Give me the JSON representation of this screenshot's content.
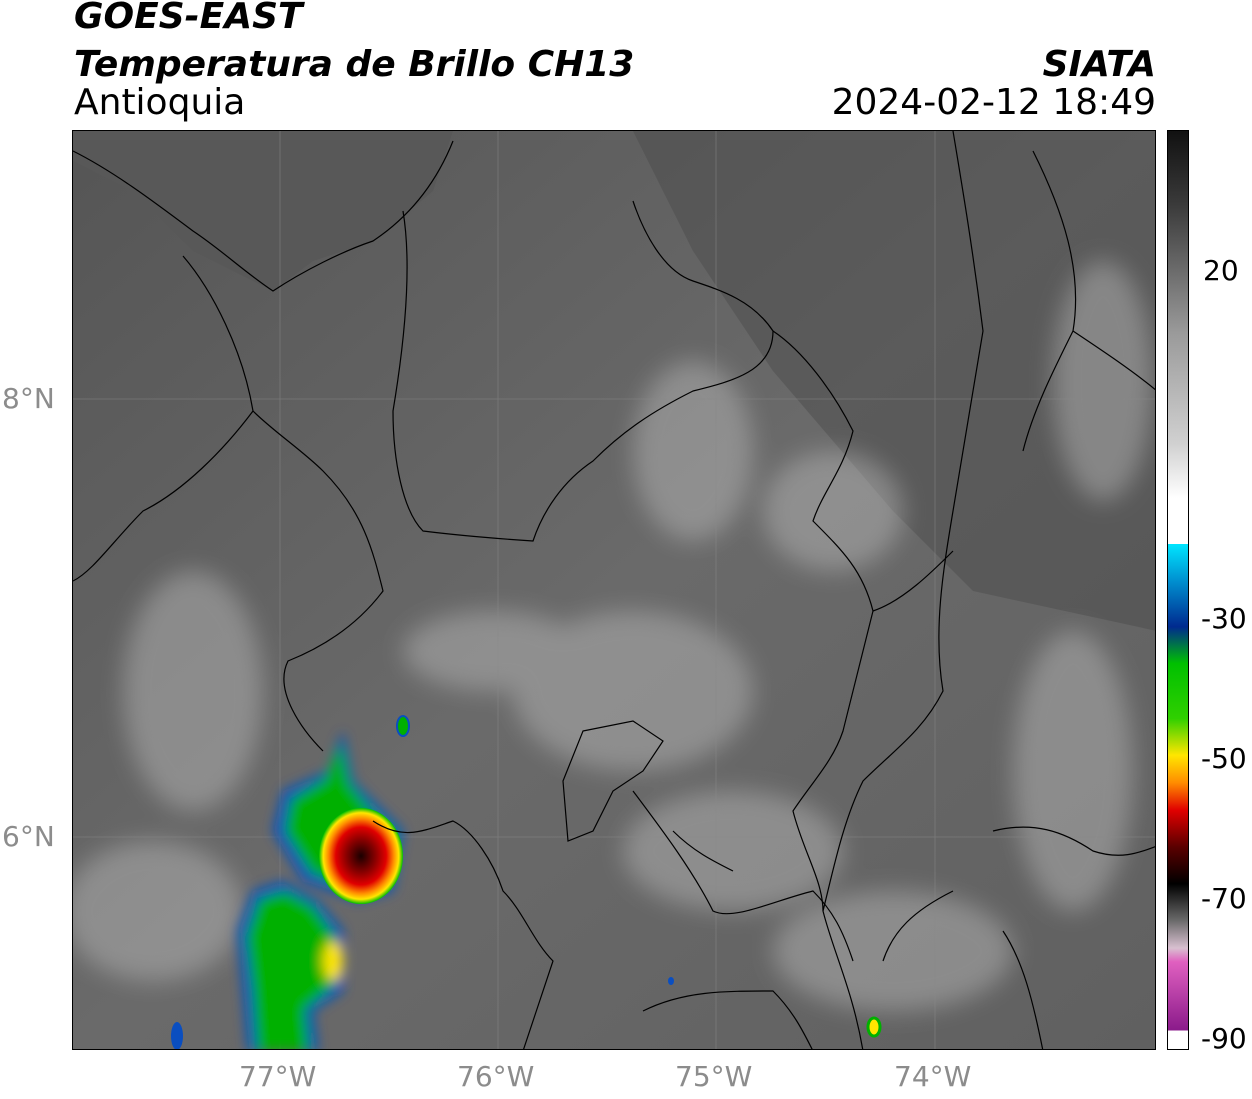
{
  "header": {
    "satellite": "GOES-EAST",
    "product": "Temperatura de Brillo CH13",
    "region": "Antioquia",
    "agency": "SIATA",
    "datetime": "2024-02-12 18:49"
  },
  "map": {
    "lon_ticks": [
      {
        "label": "77°W",
        "value": -77
      },
      {
        "label": "76°W",
        "value": -76
      },
      {
        "label": "75°W",
        "value": -75
      },
      {
        "label": "74°W",
        "value": -74
      }
    ],
    "lat_ticks": [
      {
        "label": "8°N",
        "value": 8
      },
      {
        "label": "6°N",
        "value": 6
      }
    ],
    "lon_range": [
      -77.95,
      -73.0
    ],
    "lat_range": [
      5.0,
      9.2
    ],
    "gridlines": true
  },
  "colorbar": {
    "ticks": [
      {
        "label": "20",
        "value": 20
      },
      {
        "label": "-30",
        "value": -30
      },
      {
        "label": "-50",
        "value": -50
      },
      {
        "label": "-70",
        "value": -70
      },
      {
        "label": "-90",
        "value": -90
      }
    ],
    "units_range": [
      -92,
      42
    ],
    "colors": {
      "warm_dark": "#111111",
      "mid_gray": "#9a9a9a",
      "white": "#ffffff",
      "cyan": "#00e5ff",
      "blue": "#002a8f",
      "green": "#00c000",
      "yellow": "#ffe600",
      "orange": "#ff8c00",
      "red": "#e00000",
      "dark_red": "#5a0000",
      "pink": "#e060c0",
      "purple": "#8a1a8a"
    }
  },
  "colors": {
    "land_gray": "#5f5f5f",
    "sea_gray": "#575757",
    "boundary": "#000000",
    "tick_text": "#8c8c8c"
  }
}
